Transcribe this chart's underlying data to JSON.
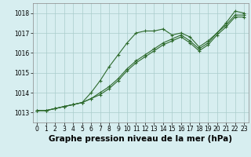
{
  "xlabel": "Graphe pression niveau de la mer (hPa)",
  "x_hours": [
    0,
    1,
    2,
    3,
    4,
    5,
    6,
    7,
    8,
    9,
    10,
    11,
    12,
    13,
    14,
    15,
    16,
    17,
    18,
    19,
    20,
    21,
    22,
    23
  ],
  "series1": [
    1013.1,
    1013.1,
    1013.2,
    1013.3,
    1013.4,
    1013.5,
    1014.0,
    1014.6,
    1015.3,
    1015.9,
    1016.5,
    1017.0,
    1017.1,
    1017.1,
    1017.2,
    1016.9,
    1017.0,
    1016.8,
    1016.3,
    1016.6,
    1017.0,
    1017.5,
    1018.1,
    1018.0
  ],
  "series2": [
    1013.1,
    1013.1,
    1013.2,
    1013.3,
    1013.4,
    1013.5,
    1013.7,
    1014.0,
    1014.3,
    1014.7,
    1015.2,
    1015.6,
    1015.9,
    1016.2,
    1016.5,
    1016.7,
    1016.9,
    1016.6,
    1016.2,
    1016.5,
    1017.0,
    1017.4,
    1017.9,
    1017.9
  ],
  "series3": [
    1013.1,
    1013.1,
    1013.2,
    1013.3,
    1013.4,
    1013.5,
    1013.7,
    1013.9,
    1014.2,
    1014.6,
    1015.1,
    1015.5,
    1015.8,
    1016.1,
    1016.4,
    1016.6,
    1016.8,
    1016.5,
    1016.1,
    1016.4,
    1016.9,
    1017.3,
    1017.8,
    1017.8
  ],
  "line_color": "#2d6a2d",
  "marker": "+",
  "bg_color": "#d7eef0",
  "grid_color": "#aacccc",
  "ylim": [
    1012.5,
    1018.5
  ],
  "yticks": [
    1013,
    1014,
    1015,
    1016,
    1017,
    1018
  ],
  "xticks": [
    0,
    1,
    2,
    3,
    4,
    5,
    6,
    7,
    8,
    9,
    10,
    11,
    12,
    13,
    14,
    15,
    16,
    17,
    18,
    19,
    20,
    21,
    22,
    23
  ],
  "label_fontsize": 7.5,
  "tick_fontsize": 5.5
}
